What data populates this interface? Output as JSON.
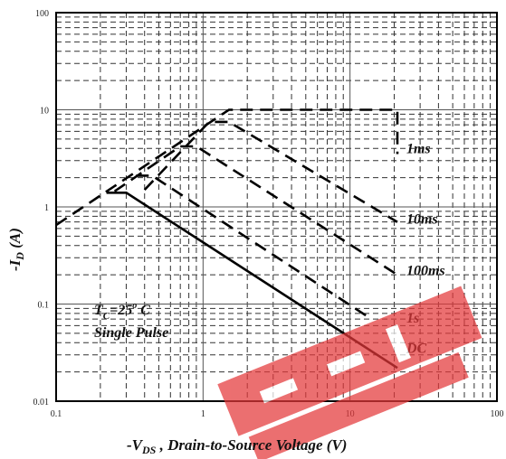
{
  "chart_data": {
    "type": "line",
    "x_scale": "log",
    "y_scale": "log",
    "xlim": [
      0.1,
      100
    ],
    "ylim": [
      0.01,
      100
    ],
    "x_ticks": [
      "0.1",
      "1",
      "10",
      "100"
    ],
    "y_ticks": [
      "0.01",
      "0.1",
      "1",
      "10",
      "100"
    ],
    "xlabel_prefix": "-V",
    "xlabel_sub": "DS",
    "xlabel_rest": " , Drain-to-Source Voltage (V)",
    "ylabel_prefix": "-I",
    "ylabel_sub": "D",
    "ylabel_rest": " (A)",
    "grid": true,
    "annotation_line1_prefix": "T",
    "annotation_line1_sub": "C",
    "annotation_line1_rest": "=25",
    "annotation_line1_sup": "o",
    "annotation_line1_unit": " C",
    "annotation_line2": "Single Pulse",
    "series": [
      {
        "name": "1ms",
        "style": "dashed",
        "x": [
          0.1,
          1.5,
          14.5,
          21,
          21
        ],
        "y": [
          0.65,
          10,
          10,
          10,
          3.5
        ]
      },
      {
        "name": "10ms",
        "style": "dashed",
        "x": [
          0.4,
          1.1,
          1.5,
          21,
          21
        ],
        "y": [
          1.5,
          7.5,
          7.5,
          0.7,
          0.7
        ]
      },
      {
        "name": "100ms",
        "style": "dashed",
        "x": [
          0.25,
          0.7,
          0.9,
          21,
          21
        ],
        "y": [
          1.45,
          4.2,
          4.2,
          0.2,
          0.2
        ]
      },
      {
        "name": "1s",
        "style": "dashed",
        "x": [
          0.35,
          0.45,
          14,
          14
        ],
        "y": [
          2.1,
          2.1,
          0.07,
          0.07
        ]
      },
      {
        "name": "DC",
        "style": "solid",
        "x": [
          0.22,
          0.3,
          21
        ],
        "y": [
          1.4,
          1.4,
          0.022
        ]
      }
    ],
    "series_labels": [
      {
        "text": "1ms",
        "x": 21,
        "y": 4
      },
      {
        "text": "10ms",
        "x": 21,
        "y": 0.75
      },
      {
        "text": "100ms",
        "x": 21,
        "y": 0.22
      },
      {
        "text": "1s",
        "x": 21,
        "y": 0.072
      },
      {
        "text": "DC",
        "x": 21,
        "y": 0.035
      }
    ]
  }
}
